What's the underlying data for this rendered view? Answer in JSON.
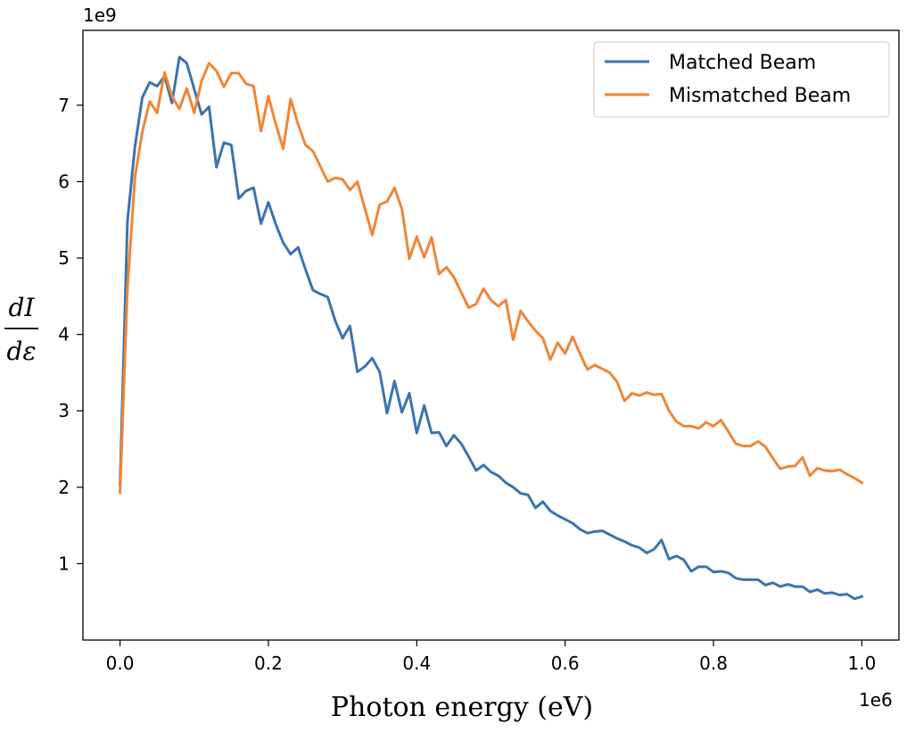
{
  "chart_data": {
    "type": "line",
    "title": "",
    "xlabel": "Photon energy (eV)",
    "ylabel_numerator": "dI",
    "ylabel_denominator": "dε",
    "x_offset_label": "1e6",
    "y_offset_label": "1e9",
    "xlim": [
      -0.05,
      1.05
    ],
    "ylim": [
      0.0,
      7.98
    ],
    "x_ticks": [
      0.0,
      0.2,
      0.4,
      0.6,
      0.8,
      1.0
    ],
    "x_tick_labels": [
      "0.0",
      "0.2",
      "0.4",
      "0.6",
      "0.8",
      "1.0"
    ],
    "y_ticks": [
      1,
      2,
      3,
      4,
      5,
      6,
      7
    ],
    "y_tick_labels": [
      "1",
      "2",
      "3",
      "4",
      "5",
      "6",
      "7"
    ],
    "grid": false,
    "legend_position": "top-right",
    "series": [
      {
        "name": "Matched Beam",
        "color": "#3a75ae",
        "values": [
          2.03,
          5.48,
          6.45,
          7.1,
          7.3,
          7.25,
          7.38,
          7.03,
          7.63,
          7.55,
          7.21,
          6.88,
          6.98,
          6.19,
          6.51,
          6.48,
          5.78,
          5.88,
          5.92,
          5.45,
          5.73,
          5.44,
          5.2,
          5.05,
          5.14,
          4.85,
          4.58,
          4.53,
          4.49,
          4.18,
          3.95,
          4.11,
          3.51,
          3.58,
          3.69,
          3.51,
          2.97,
          3.39,
          2.98,
          3.23,
          2.71,
          3.07,
          2.71,
          2.72,
          2.54,
          2.68,
          2.57,
          2.4,
          2.22,
          2.29,
          2.2,
          2.15,
          2.06,
          2.0,
          1.92,
          1.9,
          1.73,
          1.81,
          1.69,
          1.63,
          1.58,
          1.53,
          1.45,
          1.4,
          1.42,
          1.43,
          1.38,
          1.33,
          1.29,
          1.24,
          1.21,
          1.14,
          1.19,
          1.31,
          1.06,
          1.1,
          1.05,
          0.9,
          0.96,
          0.96,
          0.89,
          0.9,
          0.88,
          0.81,
          0.79,
          0.79,
          0.79,
          0.72,
          0.75,
          0.7,
          0.73,
          0.7,
          0.7,
          0.63,
          0.66,
          0.61,
          0.62,
          0.59,
          0.6,
          0.54,
          0.57
        ]
      },
      {
        "name": "Mismatched Beam",
        "color": "#ef8637",
        "values": [
          1.93,
          4.6,
          6.05,
          6.65,
          7.05,
          6.9,
          7.43,
          7.12,
          6.95,
          7.22,
          6.9,
          7.32,
          7.55,
          7.45,
          7.24,
          7.42,
          7.42,
          7.28,
          7.25,
          6.66,
          7.12,
          6.75,
          6.43,
          7.08,
          6.75,
          6.48,
          6.4,
          6.2,
          6.0,
          6.05,
          6.03,
          5.89,
          6.0,
          5.65,
          5.3,
          5.7,
          5.74,
          5.92,
          5.64,
          4.99,
          5.28,
          5.01,
          5.27,
          4.79,
          4.88,
          4.75,
          4.55,
          4.35,
          4.4,
          4.6,
          4.45,
          4.37,
          4.45,
          3.93,
          4.31,
          4.17,
          4.05,
          3.95,
          3.67,
          3.89,
          3.75,
          3.97,
          3.75,
          3.54,
          3.6,
          3.55,
          3.5,
          3.38,
          3.13,
          3.23,
          3.2,
          3.24,
          3.21,
          3.22,
          3.0,
          2.86,
          2.8,
          2.8,
          2.77,
          2.85,
          2.8,
          2.88,
          2.73,
          2.57,
          2.54,
          2.54,
          2.6,
          2.53,
          2.38,
          2.24,
          2.27,
          2.28,
          2.39,
          2.15,
          2.25,
          2.22,
          2.21,
          2.23,
          2.17,
          2.12,
          2.06
        ]
      }
    ]
  }
}
